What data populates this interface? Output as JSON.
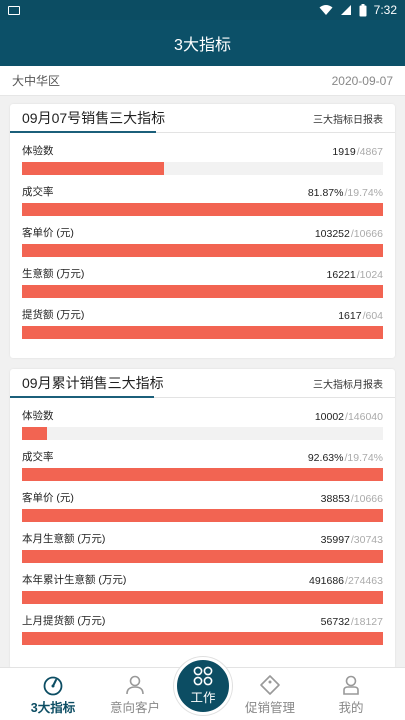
{
  "status_bar": {
    "time": "7:32"
  },
  "header": {
    "title": "3大指标"
  },
  "subheader": {
    "region": "大中华区",
    "date": "2020-09-07"
  },
  "daily_card": {
    "title": "09月07号销售三大指标",
    "report_link": "三大指标日报表",
    "metrics": [
      {
        "label": "体验数",
        "value": "1919",
        "target": "/4867",
        "progress": 0.394
      },
      {
        "label": "成交率",
        "value": "81.87%",
        "target": "/19.74%",
        "progress": 1.0
      },
      {
        "label": "客单价 (元)",
        "value": "103252",
        "target": "/10666",
        "progress": 1.0
      },
      {
        "label": "生意额 (万元)",
        "value": "16221",
        "target": "/1024",
        "progress": 1.0
      },
      {
        "label": "提货额 (万元)",
        "value": "1617",
        "target": "/604",
        "progress": 1.0
      }
    ]
  },
  "monthly_card": {
    "title": "09月累计销售三大指标",
    "report_link": "三大指标月报表",
    "metrics": [
      {
        "label": "体验数",
        "value": "10002",
        "target": "/146040",
        "progress": 0.068
      },
      {
        "label": "成交率",
        "value": "92.63%",
        "target": "/19.74%",
        "progress": 1.0
      },
      {
        "label": "客单价 (元)",
        "value": "38853",
        "target": "/10666",
        "progress": 1.0
      },
      {
        "label": "本月生意额 (万元)",
        "value": "35997",
        "target": "/30743",
        "progress": 1.0
      },
      {
        "label": "本年累计生意额 (万元)",
        "value": "491686",
        "target": "/274463",
        "progress": 1.0
      },
      {
        "label": "上月提货额 (万元)",
        "value": "56732",
        "target": "/18127",
        "progress": 1.0
      }
    ]
  },
  "bottom_nav": {
    "items": [
      {
        "label": "3大指标",
        "icon": "gauge-icon",
        "active": true
      },
      {
        "label": "意向客户",
        "icon": "person-icon",
        "active": false
      },
      {
        "label": "工作",
        "icon": "grid-icon",
        "active": false
      },
      {
        "label": "促销管理",
        "icon": "tag-icon",
        "active": false
      },
      {
        "label": "我的",
        "icon": "user-icon",
        "active": false
      }
    ]
  },
  "colors": {
    "primary": "#0c4d63",
    "bar": "#f26452",
    "track": "#f2f2f2"
  }
}
